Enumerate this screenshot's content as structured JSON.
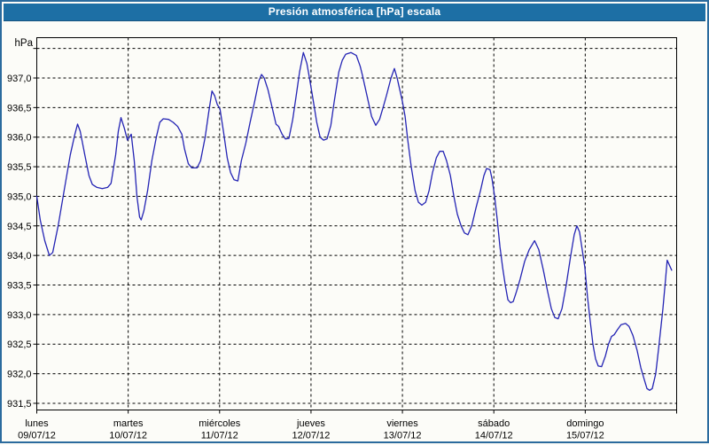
{
  "window": {
    "title": "Presión atmosférica [hPa] escala"
  },
  "colors": {
    "titlebar_bg": "#1d6fa5",
    "titlebar_fg": "#ffffff",
    "frame_border": "#2b6b9e",
    "page_bg": "#fcfcf8",
    "plot_border": "#000000",
    "grid": "#000000",
    "line": "#2424b4",
    "label_text": "#000000"
  },
  "chart_data": {
    "type": "line",
    "title": "Presión atmosférica [hPa] escala",
    "unit_label": "hPa",
    "ylim": [
      931.4,
      937.7
    ],
    "ygrid_step": 0.5,
    "ygrid_values": [
      937.5,
      937.0,
      936.5,
      936.0,
      935.5,
      935.0,
      934.5,
      934.0,
      933.5,
      933.0,
      932.5,
      932.0,
      931.5
    ],
    "grid": true,
    "legend": "none",
    "ytick_labels": [
      {
        "value": 937.0,
        "label": "937,0"
      },
      {
        "value": 936.5,
        "label": "936,5"
      },
      {
        "value": 936.0,
        "label": "936,0"
      },
      {
        "value": 935.5,
        "label": "935,5"
      },
      {
        "value": 935.0,
        "label": "935,0"
      },
      {
        "value": 934.5,
        "label": "934,5"
      },
      {
        "value": 934.0,
        "label": "934,0"
      },
      {
        "value": 933.5,
        "label": "933,5"
      },
      {
        "value": 933.0,
        "label": "933,0"
      },
      {
        "value": 932.5,
        "label": "932,5"
      },
      {
        "value": 932.0,
        "label": "932,0"
      },
      {
        "value": 931.5,
        "label": "931,5"
      }
    ],
    "days": [
      {
        "name": "lunes",
        "date": "09/07/12"
      },
      {
        "name": "martes",
        "date": "10/07/12"
      },
      {
        "name": "miércoles",
        "date": "11/07/12"
      },
      {
        "name": "jueves",
        "date": "12/07/12"
      },
      {
        "name": "viernes",
        "date": "13/07/12"
      },
      {
        "name": "sábado",
        "date": "14/07/12"
      },
      {
        "name": "domingo",
        "date": "15/07/12"
      }
    ],
    "x_hours_total": 168,
    "series": [
      {
        "name": "Presión atmosférica",
        "color": "#2424b4",
        "points_hours_hpa": [
          [
            0.0,
            935.0
          ],
          [
            0.9,
            934.6
          ],
          [
            2.1,
            934.25
          ],
          [
            3.3,
            934.0
          ],
          [
            4.2,
            934.05
          ],
          [
            5.6,
            934.5
          ],
          [
            7.2,
            935.1
          ],
          [
            8.8,
            935.7
          ],
          [
            10.0,
            936.05
          ],
          [
            10.7,
            936.22
          ],
          [
            11.4,
            936.1
          ],
          [
            12.6,
            935.7
          ],
          [
            13.7,
            935.35
          ],
          [
            14.6,
            935.2
          ],
          [
            15.8,
            935.15
          ],
          [
            17.2,
            935.13
          ],
          [
            18.6,
            935.15
          ],
          [
            19.5,
            935.22
          ],
          [
            20.7,
            935.7
          ],
          [
            21.4,
            936.1
          ],
          [
            22.1,
            936.33
          ],
          [
            23.0,
            936.15
          ],
          [
            23.8,
            935.95
          ],
          [
            24.8,
            936.05
          ],
          [
            25.6,
            935.6
          ],
          [
            26.3,
            935.0
          ],
          [
            27.0,
            934.65
          ],
          [
            27.4,
            934.6
          ],
          [
            28.1,
            934.75
          ],
          [
            29.1,
            935.1
          ],
          [
            30.2,
            935.6
          ],
          [
            31.4,
            936.0
          ],
          [
            32.3,
            936.25
          ],
          [
            33.2,
            936.31
          ],
          [
            34.6,
            936.3
          ],
          [
            35.8,
            936.25
          ],
          [
            37.0,
            936.18
          ],
          [
            38.1,
            936.05
          ],
          [
            38.8,
            935.8
          ],
          [
            39.8,
            935.55
          ],
          [
            40.7,
            935.48
          ],
          [
            42.1,
            935.48
          ],
          [
            43.0,
            935.6
          ],
          [
            44.2,
            936.0
          ],
          [
            45.1,
            936.4
          ],
          [
            46.0,
            936.78
          ],
          [
            46.7,
            936.7
          ],
          [
            47.4,
            936.55
          ],
          [
            48.1,
            936.48
          ],
          [
            49.0,
            936.1
          ],
          [
            50.0,
            935.65
          ],
          [
            50.9,
            935.4
          ],
          [
            51.8,
            935.28
          ],
          [
            52.8,
            935.26
          ],
          [
            53.7,
            935.6
          ],
          [
            54.9,
            935.9
          ],
          [
            56.0,
            936.25
          ],
          [
            57.2,
            936.6
          ],
          [
            58.3,
            936.95
          ],
          [
            59.0,
            937.06
          ],
          [
            59.7,
            937.0
          ],
          [
            60.7,
            936.8
          ],
          [
            61.8,
            936.5
          ],
          [
            62.8,
            936.22
          ],
          [
            63.5,
            936.18
          ],
          [
            64.4,
            936.05
          ],
          [
            65.3,
            935.97
          ],
          [
            66.2,
            935.98
          ],
          [
            67.2,
            936.3
          ],
          [
            68.1,
            936.7
          ],
          [
            69.0,
            937.1
          ],
          [
            70.0,
            937.43
          ],
          [
            70.9,
            937.25
          ],
          [
            71.6,
            937.0
          ],
          [
            72.5,
            936.65
          ],
          [
            73.5,
            936.25
          ],
          [
            74.4,
            936.0
          ],
          [
            75.3,
            935.95
          ],
          [
            76.2,
            935.97
          ],
          [
            77.2,
            936.2
          ],
          [
            78.1,
            936.6
          ],
          [
            79.3,
            937.1
          ],
          [
            80.2,
            937.3
          ],
          [
            81.1,
            937.4
          ],
          [
            82.5,
            937.43
          ],
          [
            83.9,
            937.38
          ],
          [
            84.9,
            937.2
          ],
          [
            85.5,
            937.05
          ],
          [
            86.7,
            936.7
          ],
          [
            87.9,
            936.35
          ],
          [
            89.0,
            936.2
          ],
          [
            90.0,
            936.3
          ],
          [
            90.9,
            936.5
          ],
          [
            91.8,
            936.7
          ],
          [
            93.0,
            937.0
          ],
          [
            93.9,
            937.16
          ],
          [
            94.6,
            937.0
          ],
          [
            95.3,
            936.8
          ],
          [
            96.0,
            936.6
          ],
          [
            96.7,
            936.35
          ],
          [
            97.4,
            935.95
          ],
          [
            98.3,
            935.5
          ],
          [
            99.3,
            935.1
          ],
          [
            100.2,
            934.9
          ],
          [
            101.1,
            934.85
          ],
          [
            102.1,
            934.9
          ],
          [
            103.0,
            935.1
          ],
          [
            103.9,
            935.4
          ],
          [
            104.9,
            935.65
          ],
          [
            105.8,
            935.76
          ],
          [
            106.7,
            935.76
          ],
          [
            107.6,
            935.6
          ],
          [
            108.6,
            935.35
          ],
          [
            109.5,
            935.0
          ],
          [
            110.4,
            934.7
          ],
          [
            111.4,
            934.5
          ],
          [
            112.3,
            934.38
          ],
          [
            113.2,
            934.35
          ],
          [
            114.2,
            934.5
          ],
          [
            115.3,
            934.8
          ],
          [
            116.5,
            935.1
          ],
          [
            117.4,
            935.35
          ],
          [
            118.1,
            935.47
          ],
          [
            119.0,
            935.45
          ],
          [
            119.5,
            935.3
          ],
          [
            120.2,
            935.0
          ],
          [
            120.9,
            934.6
          ],
          [
            121.6,
            934.15
          ],
          [
            122.3,
            933.8
          ],
          [
            123.0,
            933.5
          ],
          [
            123.7,
            933.25
          ],
          [
            124.4,
            933.2
          ],
          [
            125.1,
            933.22
          ],
          [
            126.0,
            933.4
          ],
          [
            126.9,
            933.6
          ],
          [
            128.1,
            933.9
          ],
          [
            129.3,
            934.1
          ],
          [
            130.7,
            934.25
          ],
          [
            131.8,
            934.1
          ],
          [
            133.0,
            933.75
          ],
          [
            134.1,
            933.4
          ],
          [
            135.1,
            933.1
          ],
          [
            136.0,
            932.95
          ],
          [
            136.9,
            932.93
          ],
          [
            137.9,
            933.1
          ],
          [
            139.0,
            933.5
          ],
          [
            140.2,
            934.0
          ],
          [
            141.1,
            934.35
          ],
          [
            141.8,
            934.5
          ],
          [
            142.5,
            934.4
          ],
          [
            143.2,
            934.1
          ],
          [
            143.9,
            933.8
          ],
          [
            144.6,
            933.3
          ],
          [
            145.3,
            932.9
          ],
          [
            146.0,
            932.5
          ],
          [
            146.7,
            932.25
          ],
          [
            147.4,
            932.13
          ],
          [
            148.3,
            932.12
          ],
          [
            149.3,
            932.3
          ],
          [
            150.1,
            932.5
          ],
          [
            150.9,
            932.63
          ],
          [
            151.6,
            932.66
          ],
          [
            152.5,
            932.75
          ],
          [
            153.4,
            932.83
          ],
          [
            154.6,
            932.85
          ],
          [
            155.5,
            932.8
          ],
          [
            156.5,
            932.65
          ],
          [
            157.6,
            932.4
          ],
          [
            158.6,
            932.1
          ],
          [
            159.5,
            931.9
          ],
          [
            160.2,
            931.75
          ],
          [
            160.9,
            931.72
          ],
          [
            161.6,
            931.75
          ],
          [
            162.5,
            932.0
          ],
          [
            163.4,
            932.5
          ],
          [
            164.4,
            933.1
          ],
          [
            165.1,
            933.6
          ],
          [
            165.5,
            933.92
          ],
          [
            166.0,
            933.85
          ],
          [
            166.7,
            933.75
          ]
        ]
      }
    ]
  }
}
